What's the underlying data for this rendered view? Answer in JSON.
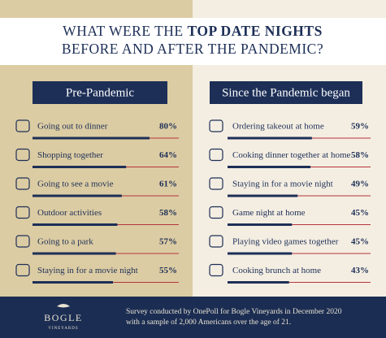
{
  "header": {
    "title_lead": "WHAT WERE THE",
    "title_bold": "TOP DATE NIGHTS",
    "title_line2": "BEFORE AND AFTER THE PANDEMIC?"
  },
  "chart_data": [
    {
      "type": "bar",
      "title": "Pre-Pandemic",
      "categories": [
        "Going out to dinner",
        "Shopping together",
        "Going to see a movie",
        "Outdoor activities",
        "Going to a park",
        "Staying in for a movie night"
      ],
      "values": [
        80,
        64,
        61,
        58,
        57,
        55
      ],
      "value_labels": [
        "80%",
        "64%",
        "61%",
        "58%",
        "57%",
        "55%"
      ],
      "xlim": [
        0,
        100
      ],
      "color": "#1d2f57"
    },
    {
      "type": "bar",
      "title": "Since the Pandemic began",
      "categories": [
        "Ordering takeout at home",
        "Cooking dinner together at home",
        "Staying in for a movie night",
        "Game night at home",
        "Playing video games together",
        "Cooking brunch at home"
      ],
      "values": [
        59,
        58,
        49,
        45,
        45,
        43
      ],
      "value_labels": [
        "59%",
        "58%",
        "49%",
        "45%",
        "45%",
        "43%"
      ],
      "xlim": [
        0,
        100
      ],
      "color": "#1d2f57"
    }
  ],
  "footer": {
    "brand": "BOGLE",
    "brand_sub": "VINEYARDS",
    "note_line1": "Survey conducted by OnePoll for Bogle Vineyards in December 2020",
    "note_line2": "with a sample of 2,000 Americans over the age of 21."
  }
}
